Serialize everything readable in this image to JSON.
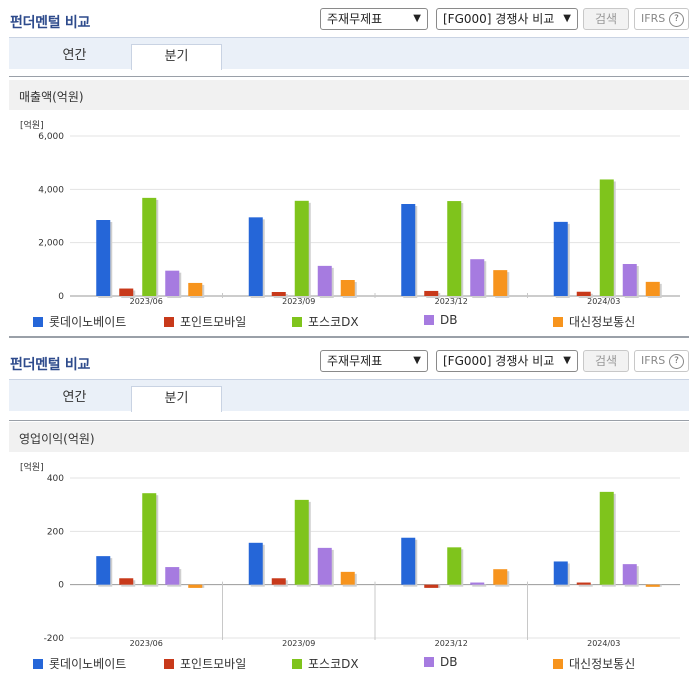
{
  "panels": [
    {
      "title": "펀더멘털 비교",
      "select1": "주재무제표",
      "select2": "[FG000] 경쟁사 비교",
      "search_label": "검색",
      "ifrs_label": "IFRS",
      "ifrs_help": "?",
      "tabs": [
        "연간",
        "분기"
      ],
      "active_tab": "분기",
      "caption": "매출액(억원)",
      "unit": "[억원]"
    },
    {
      "title": "펀더멘털 비교",
      "select1": "주재무제표",
      "select2": "[FG000] 경쟁사 비교",
      "search_label": "검색",
      "ifrs_label": "IFRS",
      "ifrs_help": "?",
      "tabs": [
        "연간",
        "분기"
      ],
      "active_tab": "분기",
      "caption": "영업이익(억원)",
      "unit": "[억원]"
    }
  ],
  "colors": [
    "#2566d8",
    "#c8391a",
    "#7fc41c",
    "#a67be0",
    "#f7941d"
  ],
  "chart_data": [
    {
      "type": "bar",
      "title": "매출액(억원)",
      "ylabel": "[억원]",
      "categories": [
        "2023/06",
        "2023/09",
        "2023/12",
        "2024/03"
      ],
      "ylim": [
        0,
        6000
      ],
      "yticks": [
        0,
        2000,
        4000,
        6000
      ],
      "ytick_labels": [
        "0",
        "2,000",
        "4,000",
        "6,000"
      ],
      "grid": true,
      "legend": "bottom",
      "series": [
        {
          "name": "롯데이노베이트",
          "values": [
            2850,
            2950,
            3450,
            2780
          ]
        },
        {
          "name": "포인트모바일",
          "values": [
            280,
            150,
            190,
            160
          ]
        },
        {
          "name": "포스코DX",
          "values": [
            3680,
            3570,
            3560,
            4370
          ]
        },
        {
          "name": "DB",
          "values": [
            950,
            1130,
            1380,
            1200
          ]
        },
        {
          "name": "대신정보통신",
          "values": [
            490,
            600,
            970,
            530
          ]
        }
      ]
    },
    {
      "type": "bar",
      "title": "영업이익(억원)",
      "ylabel": "[억원]",
      "categories": [
        "2023/06",
        "2023/09",
        "2023/12",
        "2024/03"
      ],
      "ylim": [
        -200,
        400
      ],
      "yticks": [
        -200,
        0,
        200,
        400
      ],
      "ytick_labels": [
        "-200",
        "0",
        "200",
        "400"
      ],
      "grid": true,
      "legend": "bottom",
      "series": [
        {
          "name": "롯데이노베이트",
          "values": [
            107,
            157,
            176,
            87
          ]
        },
        {
          "name": "포인트모바일",
          "values": [
            24,
            24,
            -12,
            8
          ]
        },
        {
          "name": "포스코DX",
          "values": [
            343,
            318,
            140,
            348
          ]
        },
        {
          "name": "DB",
          "values": [
            66,
            138,
            8,
            77
          ]
        },
        {
          "name": "대신정보통신",
          "values": [
            -12,
            48,
            58,
            -8
          ]
        }
      ]
    }
  ]
}
